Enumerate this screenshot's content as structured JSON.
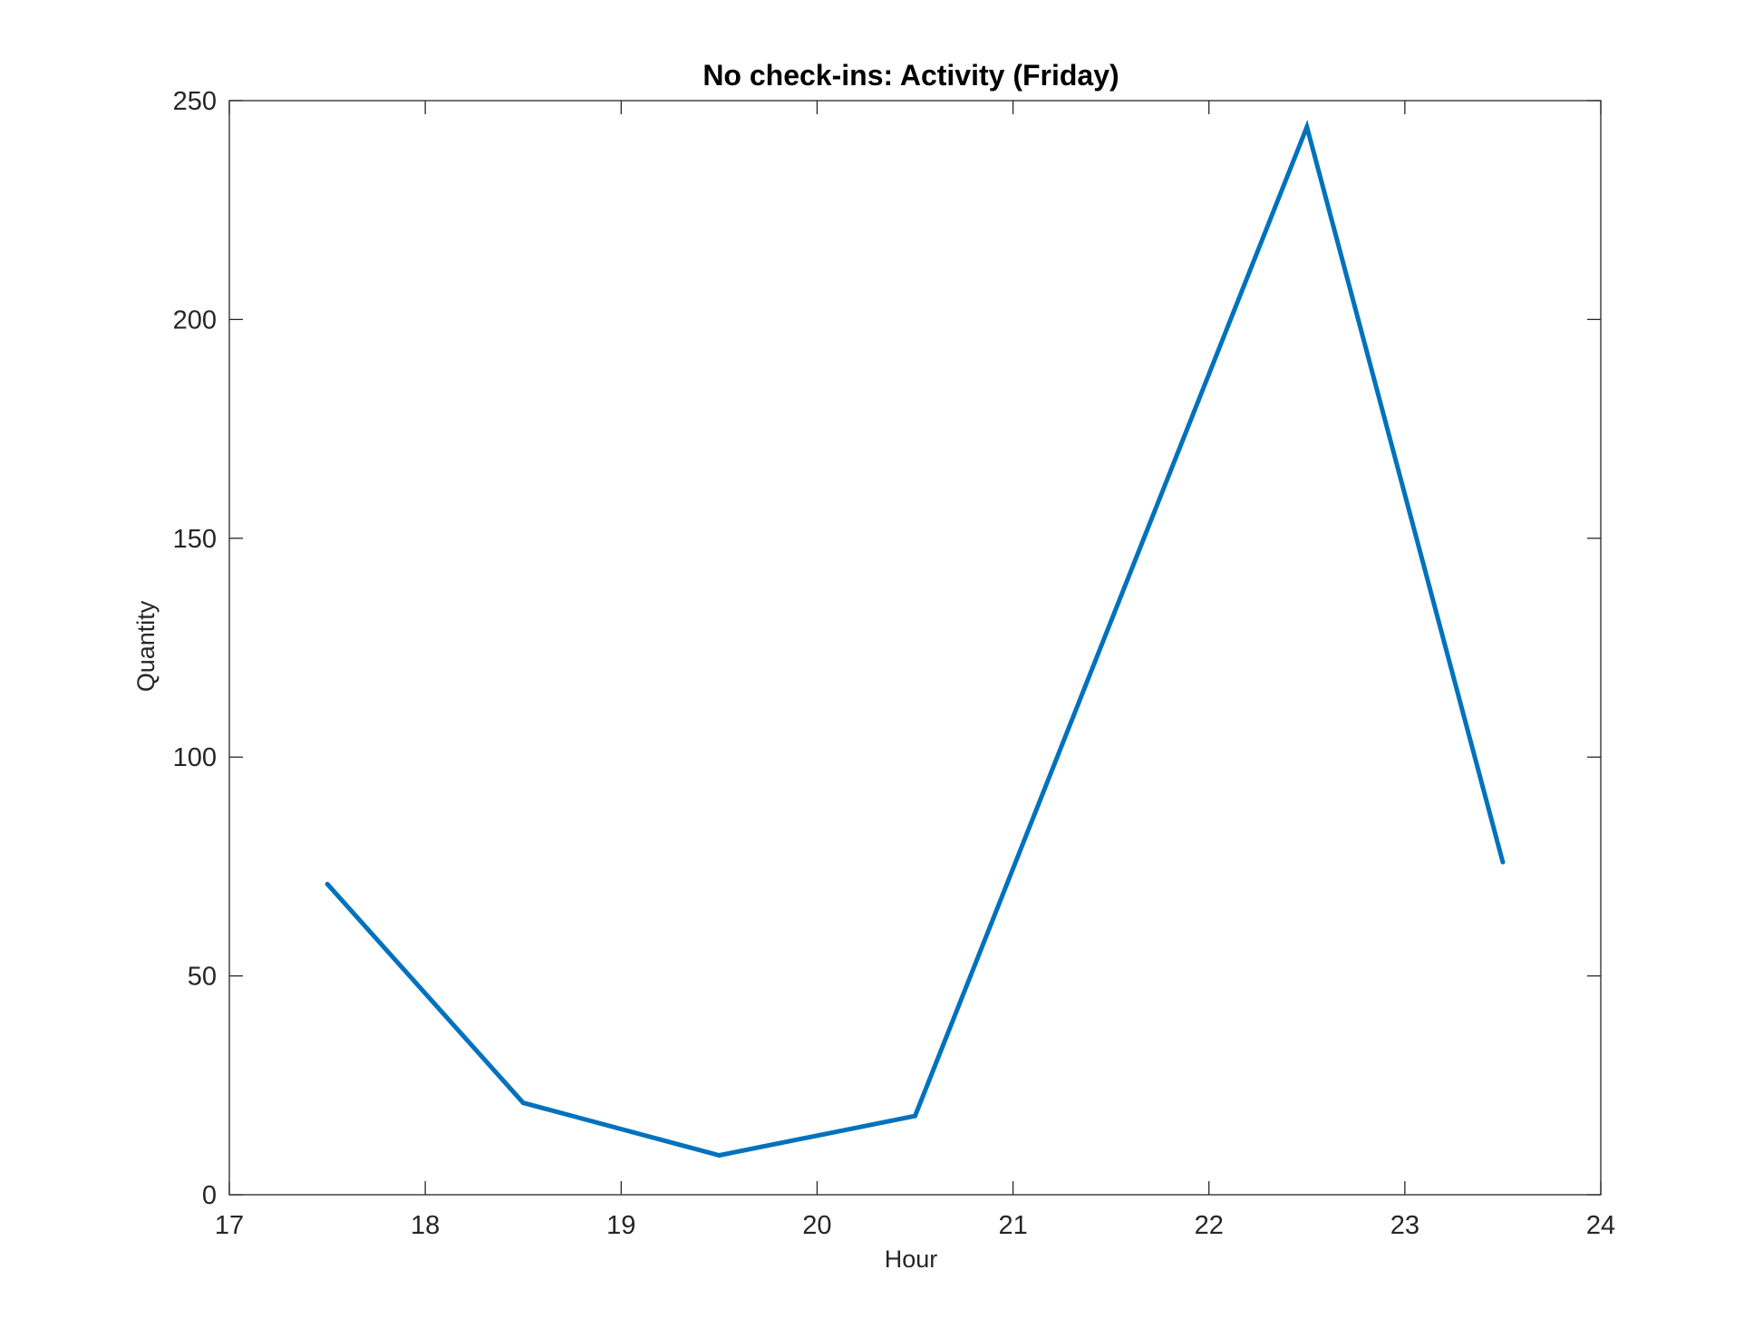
{
  "chart_data": {
    "type": "line",
    "title": "No check-ins: Activity (Friday)",
    "xlabel": "Hour",
    "ylabel": "Quantity",
    "xlim": [
      17,
      24
    ],
    "ylim": [
      0,
      250
    ],
    "xticks": [
      17,
      18,
      19,
      20,
      21,
      22,
      23,
      24
    ],
    "yticks": [
      0,
      50,
      100,
      150,
      200,
      250
    ],
    "grid": false,
    "series": [
      {
        "color": "#0072BD",
        "x": [
          17.5,
          18.5,
          19.5,
          20.5,
          21.5,
          22.5,
          23.5
        ],
        "y": [
          71,
          21,
          9,
          18,
          131,
          244,
          76
        ]
      }
    ]
  }
}
